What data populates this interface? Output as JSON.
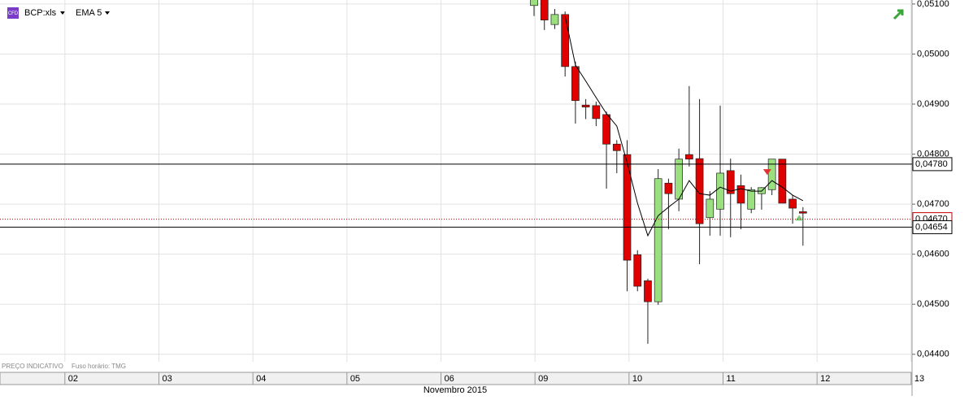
{
  "chart_data": {
    "type": "candlestick",
    "icon_label": "CFD",
    "symbol": "BCP:xls",
    "indicator": "EMA 5",
    "note": "PREÇO INDICATIVO",
    "timezone": "Fuso horário: TMG",
    "x_label": "Novembro 2015",
    "x": [
      4.99,
      5.1,
      5.21,
      5.32,
      5.43,
      5.54,
      5.65,
      5.76,
      5.87,
      5.98,
      6.09,
      6.2,
      6.31,
      6.42,
      6.53,
      6.64,
      6.75,
      6.86,
      6.97,
      7.08,
      7.19,
      7.3,
      7.41,
      7.52,
      7.63,
      7.74,
      7.85
    ],
    "open": [
      0.05097,
      0.0511,
      0.05059,
      0.05079,
      0.04975,
      0.04898,
      0.04897,
      0.04879,
      0.0482,
      0.04799,
      0.04599,
      0.04547,
      0.04505,
      0.04742,
      0.0471,
      0.04799,
      0.04791,
      0.04673,
      0.0469,
      0.04767,
      0.04737,
      0.0469,
      0.04721,
      0.04729,
      0.0479,
      0.0471,
      0.04685
    ],
    "high": [
      0.0512,
      0.05115,
      0.0509,
      0.05085,
      0.04985,
      0.0491,
      0.04905,
      0.04885,
      0.04828,
      0.04828,
      0.04608,
      0.04551,
      0.0477,
      0.04751,
      0.04811,
      0.04936,
      0.0491,
      0.04726,
      0.04897,
      0.04791,
      0.04759,
      0.04734,
      0.04734,
      0.0479,
      0.0479,
      0.04718,
      0.04694
    ],
    "low": [
      0.05076,
      0.05048,
      0.0505,
      0.04955,
      0.04861,
      0.0487,
      0.04856,
      0.04731,
      0.04762,
      0.04526,
      0.04526,
      0.04421,
      0.04499,
      0.0465,
      0.04686,
      0.04775,
      0.0458,
      0.04637,
      0.04637,
      0.04634,
      0.0465,
      0.04682,
      0.04689,
      0.04718,
      0.04702,
      0.04661,
      0.04617
    ],
    "close": [
      0.0511,
      0.05068,
      0.05079,
      0.04975,
      0.04907,
      0.04894,
      0.04871,
      0.0482,
      0.04807,
      0.04588,
      0.04536,
      0.04505,
      0.04751,
      0.04721,
      0.0479,
      0.0479,
      0.04661,
      0.0471,
      0.04762,
      0.04721,
      0.04702,
      0.04729,
      0.04733,
      0.0479,
      0.04702,
      0.04692,
      0.04682
    ],
    "ema": [
      null,
      null,
      null,
      0.05076,
      0.04978,
      0.04946,
      0.04913,
      0.04881,
      0.04856,
      0.04783,
      0.04702,
      0.04637,
      0.04677,
      0.04694,
      0.0471,
      0.04747,
      0.04721,
      0.04718,
      0.04734,
      0.04726,
      0.04731,
      0.04726,
      0.04726,
      0.04747,
      0.04734,
      0.04718,
      0.04707
    ],
    "up_color": "#9be07f",
    "down_color": "#e00000",
    "ema_color": "#000000",
    "ylim": [
      0.04385,
      0.05108
    ],
    "yticks": [
      {
        "value": 0.051,
        "label": "0,05100"
      },
      {
        "value": 0.05,
        "label": "0,05000"
      },
      {
        "value": 0.049,
        "label": "0,04900"
      },
      {
        "value": 0.048,
        "label": "0,04800"
      },
      {
        "value": 0.047,
        "label": "0,04700"
      },
      {
        "value": 0.046,
        "label": "0,04600"
      },
      {
        "value": 0.045,
        "label": "0,04500"
      },
      {
        "value": 0.044,
        "label": "0,04400"
      }
    ],
    "xlim": [
      -0.69,
      9.01
    ],
    "xticks": [
      {
        "value": 0,
        "label": "02"
      },
      {
        "value": 1,
        "label": "03"
      },
      {
        "value": 2,
        "label": "04"
      },
      {
        "value": 3,
        "label": "05"
      },
      {
        "value": 4,
        "label": "06"
      },
      {
        "value": 5,
        "label": "09"
      },
      {
        "value": 6,
        "label": "10"
      },
      {
        "value": 7,
        "label": "11"
      },
      {
        "value": 8,
        "label": "12"
      },
      {
        "value": 9,
        "label": "13"
      }
    ],
    "levels": [
      {
        "value": 0.0478,
        "label": "0,04780",
        "color": "#000000",
        "style": "solid"
      },
      {
        "value": 0.0467,
        "label": "0,04670",
        "color": "#c00000",
        "style": "dotted"
      },
      {
        "value": 0.04654,
        "label": "0,04654",
        "color": "#000000",
        "style": "solid"
      }
    ],
    "signals": [
      {
        "x": 7.47,
        "value": 0.04765,
        "color": "#e03030",
        "marker": "triangle-down"
      },
      {
        "x": 7.81,
        "value": 0.04672,
        "color": "#7fd07f",
        "marker": "triangle-up"
      }
    ],
    "grid": true
  }
}
